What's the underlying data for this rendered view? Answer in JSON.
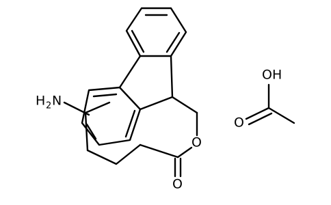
{
  "molecule": {
    "amine": {
      "h": "H",
      "sub": "2",
      "n": "N"
    },
    "ring_oxygen": "O",
    "carbonyl_oxygen": "O"
  },
  "acid": {
    "hydroxyl": "OH",
    "carbonyl_oxygen": "O"
  }
}
